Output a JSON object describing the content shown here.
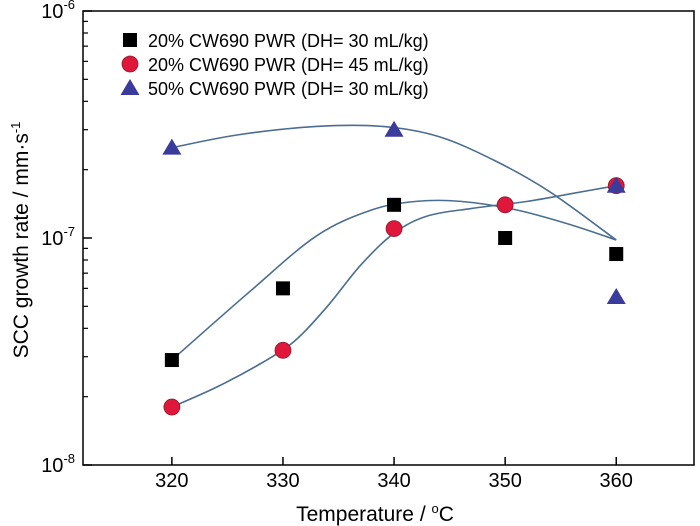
{
  "chart_data": {
    "type": "scatter",
    "xlabel": "Temperature / ",
    "xlabel_unit_sup": "o",
    "xlabel_unit": "C",
    "ylabel": "SCC growth rate / mm·s",
    "ylabel_sup": "-1",
    "x_ticks": [
      320,
      330,
      340,
      350,
      360
    ],
    "xlim": [
      312,
      367
    ],
    "y_scale": "log",
    "ylim": [
      1e-08,
      1e-06
    ],
    "y_ticks": [
      {
        "value": 1e-08,
        "base": "10",
        "exp": "-8"
      },
      {
        "value": 1e-07,
        "base": "10",
        "exp": "-7"
      },
      {
        "value": 1e-06,
        "base": "10",
        "exp": "-6"
      }
    ],
    "grid": false,
    "legend_position": "top-left",
    "series": [
      {
        "name": "20% CW690 PWR (DH= 30 mL/kg)",
        "marker": "square",
        "color": "#000000",
        "x": [
          320,
          330,
          340,
          350,
          360
        ],
        "y": [
          2.9e-08,
          6e-08,
          1.4e-07,
          1e-07,
          8.5e-08
        ],
        "fit_line": [
          [
            320,
            2.9e-08
          ],
          [
            327,
            5.8e-08
          ],
          [
            333,
            1.02e-07
          ],
          [
            338,
            1.33e-07
          ],
          [
            342,
            1.45e-07
          ],
          [
            346,
            1.45e-07
          ],
          [
            351,
            1.33e-07
          ],
          [
            356,
            1.14e-07
          ],
          [
            360,
            9.8e-08
          ]
        ]
      },
      {
        "name": "20% CW690 PWR (DH= 45 mL/kg)",
        "marker": "circle",
        "color": "#e0163a",
        "x": [
          320,
          330,
          340,
          350,
          360
        ],
        "y": [
          1.8e-08,
          3.2e-08,
          1.1e-07,
          1.4e-07,
          1.7e-07
        ],
        "fit_line": [
          [
            320,
            1.8e-08
          ],
          [
            324,
            2.2e-08
          ],
          [
            328,
            2.8e-08
          ],
          [
            331,
            3.5e-08
          ],
          [
            334,
            5e-08
          ],
          [
            337,
            7.6e-08
          ],
          [
            340,
            1.05e-07
          ],
          [
            343,
            1.25e-07
          ],
          [
            347,
            1.35e-07
          ],
          [
            352,
            1.45e-07
          ],
          [
            356,
            1.57e-07
          ],
          [
            360,
            1.7e-07
          ]
        ]
      },
      {
        "name": "50% CW690 PWR (DH= 30 mL/kg)",
        "marker": "triangle",
        "color": "#3b3b9c",
        "x": [
          320,
          340,
          360,
          360
        ],
        "y": [
          2.5e-07,
          3e-07,
          1.7e-07,
          5.5e-08
        ],
        "fit_line": [
          [
            320,
            2.5e-07
          ],
          [
            326,
            2.85e-07
          ],
          [
            333,
            3.1e-07
          ],
          [
            339,
            3.1e-07
          ],
          [
            344,
            2.8e-07
          ],
          [
            349,
            2.2e-07
          ],
          [
            354,
            1.6e-07
          ],
          [
            360,
            9.8e-08
          ]
        ]
      }
    ],
    "fit_line_color": "#4a6d91"
  }
}
